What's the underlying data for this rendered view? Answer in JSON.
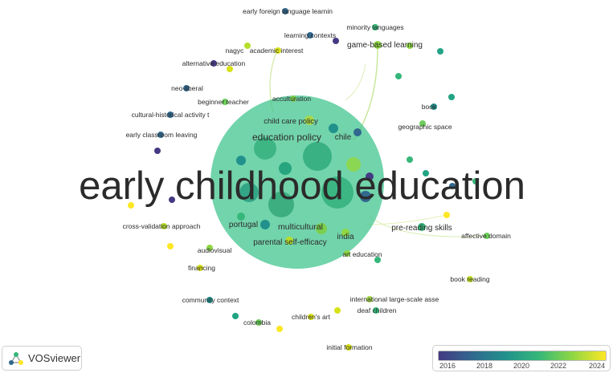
{
  "main_label": "early childhood education",
  "terms": [
    {
      "label": "early foreign language learnin",
      "year": 2017.8
    },
    {
      "label": "minority languages",
      "year": 2021.5
    },
    {
      "label": "learning contexts",
      "year": 2018.5
    },
    {
      "label": "game-based learning",
      "year": 2022.5
    },
    {
      "label": "nagyc",
      "year": 2017.0
    },
    {
      "label": "academic interest",
      "year": 2023.8
    },
    {
      "label": "alternative education",
      "year": 2016.4
    },
    {
      "label": "neo-liberal",
      "year": 2018.2
    },
    {
      "label": "beginner teacher",
      "year": 2021.0
    },
    {
      "label": "acculturation",
      "year": 2021.3
    },
    {
      "label": "cultural-historical activity t",
      "year": 2018.5
    },
    {
      "label": "child care policy",
      "year": 2020.6
    },
    {
      "label": "education policy",
      "year": 2020.0
    },
    {
      "label": "chile",
      "year": 2019.5
    },
    {
      "label": "early classroom leaving",
      "year": 2018.6
    },
    {
      "label": "book",
      "year": 2020.3
    },
    {
      "label": "geographic space",
      "year": 2021.8
    },
    {
      "label": "cross-validation approach",
      "year": 2024.0
    },
    {
      "label": "portugal",
      "year": 2020.0
    },
    {
      "label": "multicultural",
      "year": 2020.6
    },
    {
      "label": "pre-reading skills",
      "year": 2020.5
    },
    {
      "label": "affective domain",
      "year": 2021.6
    },
    {
      "label": "parental self-efficacy",
      "year": 2021.0
    },
    {
      "label": "india",
      "year": 2021.2
    },
    {
      "label": "audiovisual",
      "year": 2022.4
    },
    {
      "label": "art education",
      "year": 2022.5
    },
    {
      "label": "financing",
      "year": 2023.2
    },
    {
      "label": "book reading",
      "year": 2023.2
    },
    {
      "label": "community context",
      "year": 2019.5
    },
    {
      "label": "international large-scale asse",
      "year": 2022.8
    },
    {
      "label": "deaf children",
      "year": 2021.7
    },
    {
      "label": "colombia",
      "year": 2021.5
    },
    {
      "label": "children's art",
      "year": 2023.4
    },
    {
      "label": "initial formation",
      "year": 2023.2
    }
  ],
  "logo": {
    "text": "VOSviewer"
  },
  "legend": {
    "ticks": [
      "2016",
      "2018",
      "2020",
      "2022",
      "2024"
    ],
    "colors": [
      "#443a83",
      "#31688e",
      "#21918c",
      "#35b779",
      "#8fd744",
      "#fde725"
    ]
  }
}
